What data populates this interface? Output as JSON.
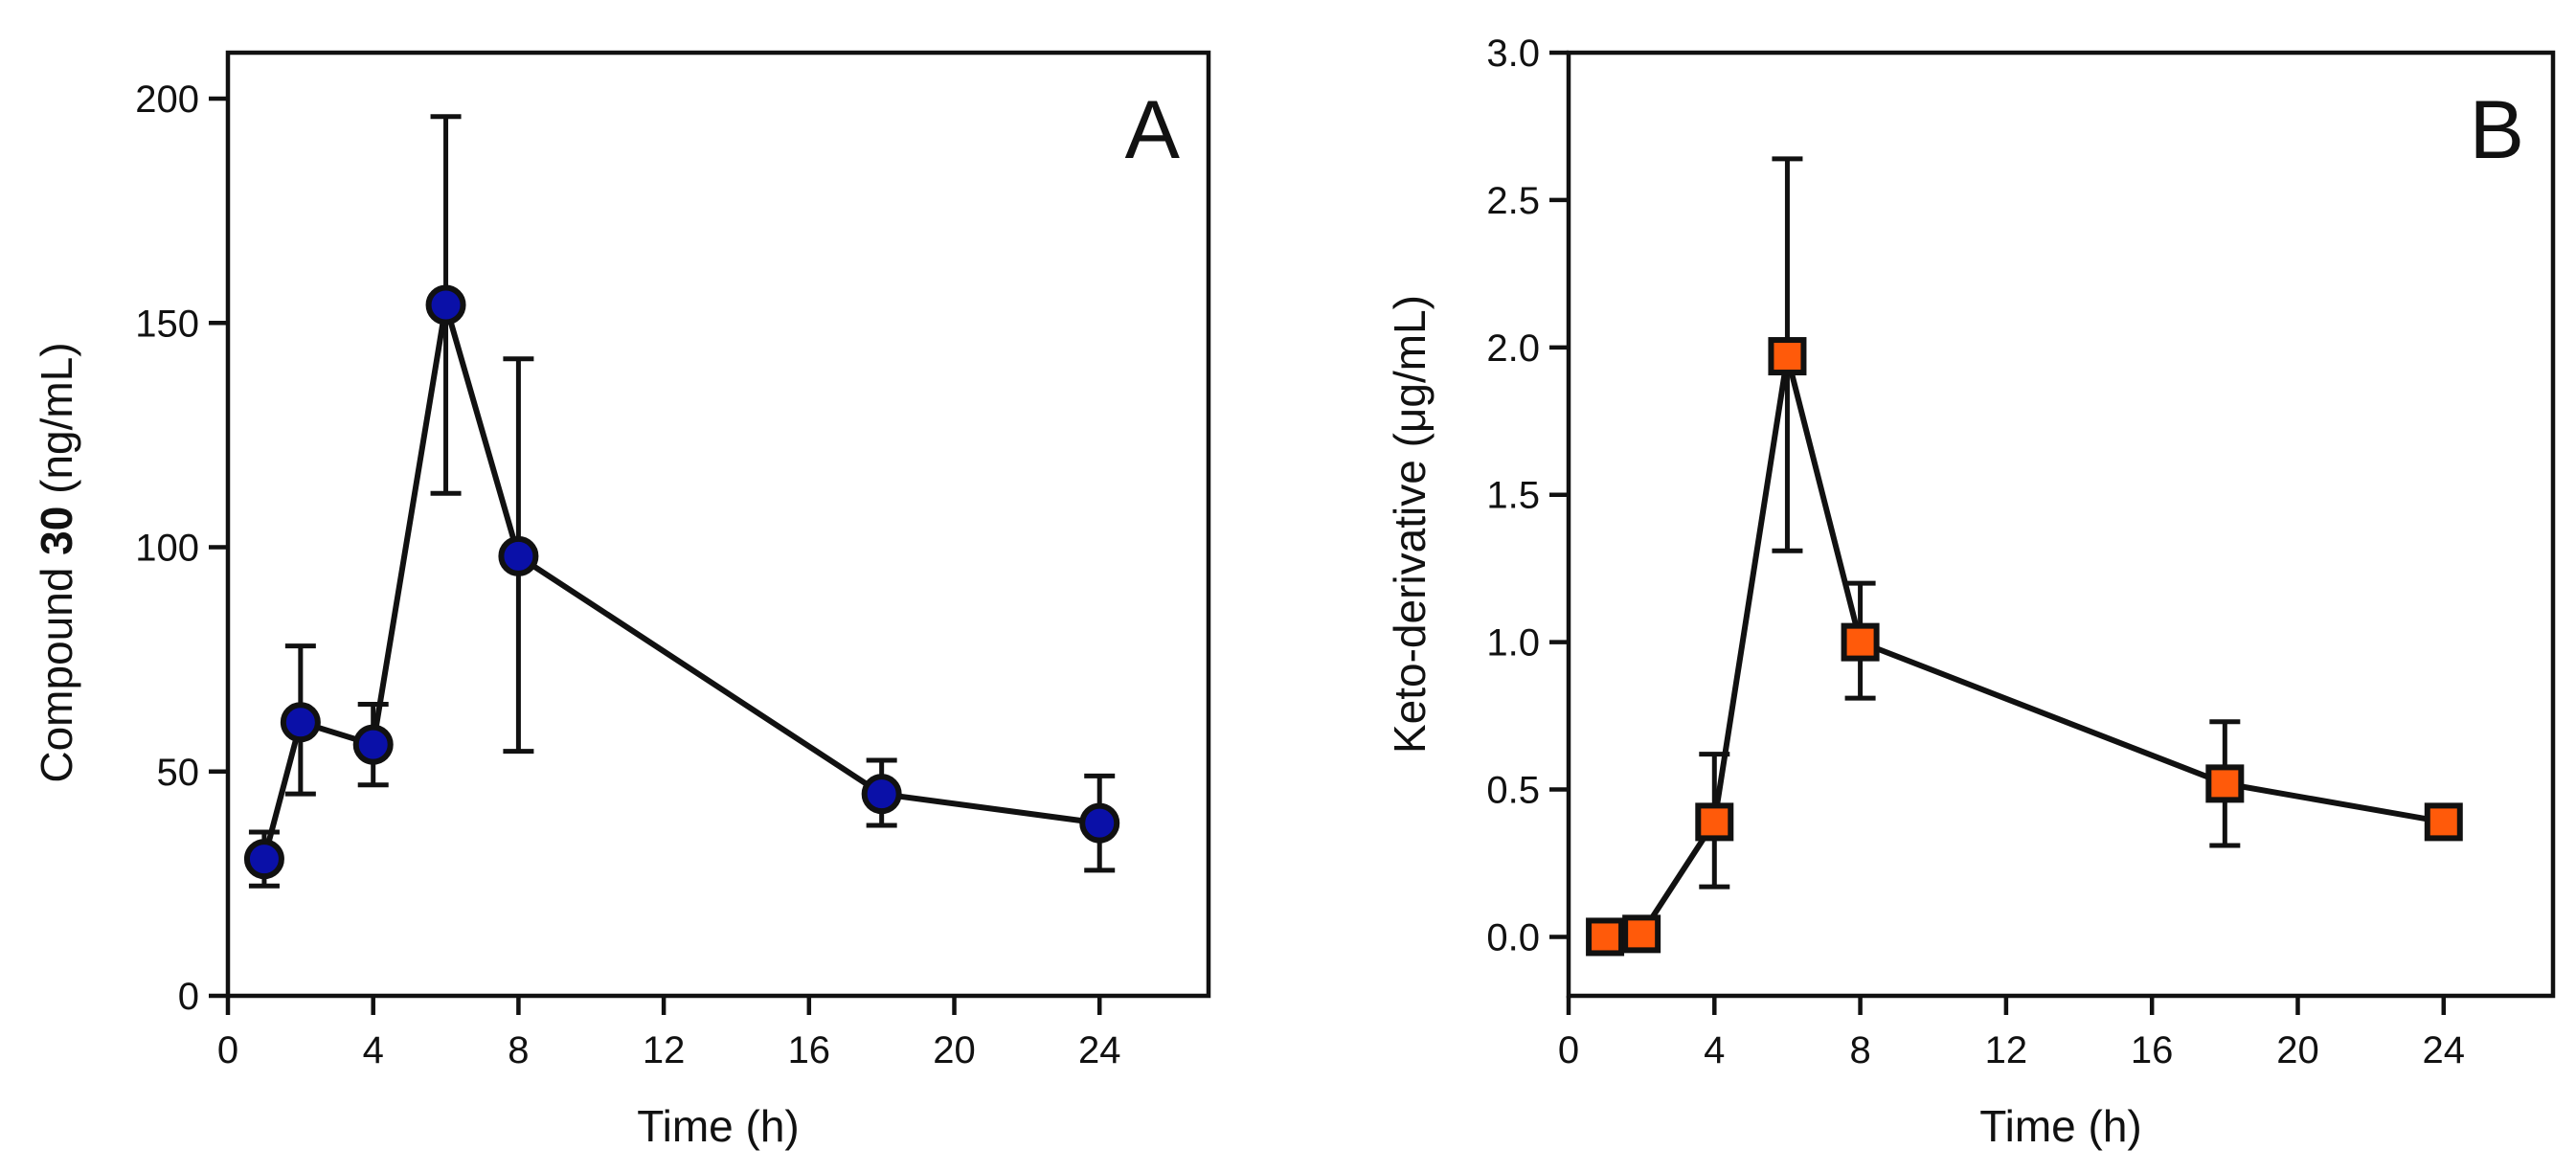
{
  "chart_data": [
    {
      "type": "line",
      "panel_label": "A",
      "xlabel": "Time (h)",
      "ylabel_parts": [
        "Compound ",
        "30",
        " (ng/mL)"
      ],
      "xlim": [
        0,
        27
      ],
      "ylim": [
        0,
        210
      ],
      "xticks": [
        0,
        4,
        8,
        12,
        16,
        20,
        24
      ],
      "xtick_labels": [
        "0",
        "4",
        "8",
        "12",
        "16",
        "20",
        "24"
      ],
      "yticks": [
        0,
        50,
        100,
        150,
        200
      ],
      "ytick_labels": [
        "0",
        "50",
        "100",
        "150",
        "200"
      ],
      "marker": "circle",
      "marker_color": "#0a10a8",
      "series": [
        {
          "name": "Compound 30",
          "x": [
            1,
            2,
            4,
            6,
            8,
            18,
            24
          ],
          "y": [
            30.5,
            61,
            56,
            154,
            98,
            45,
            38.5
          ],
          "err_upper": [
            36.5,
            78,
            65,
            196,
            142,
            52.5,
            49
          ],
          "err_lower": [
            24.5,
            45,
            47,
            112,
            54.5,
            38,
            28
          ]
        }
      ]
    },
    {
      "type": "line",
      "panel_label": "B",
      "xlabel": "Time (h)",
      "ylabel_parts": [
        "Keto-derivative (",
        "μ",
        "g/mL)"
      ],
      "xlim": [
        0,
        27
      ],
      "ylim": [
        -0.2,
        3.0
      ],
      "xticks": [
        0,
        4,
        8,
        12,
        16,
        20,
        24
      ],
      "xtick_labels": [
        "0",
        "4",
        "8",
        "12",
        "16",
        "20",
        "24"
      ],
      "yticks": [
        0.0,
        0.5,
        1.0,
        1.5,
        2.0,
        2.5,
        3.0
      ],
      "ytick_labels": [
        "0.0",
        "0.5",
        "1.0",
        "1.5",
        "2.0",
        "2.5",
        "3.0"
      ],
      "marker": "square",
      "marker_color": "#ff5a0a",
      "series": [
        {
          "name": "Keto-derivative",
          "x": [
            1,
            2,
            4,
            6,
            8,
            18,
            24
          ],
          "y": [
            0.0,
            0.01,
            0.39,
            1.97,
            1.0,
            0.52,
            0.39
          ],
          "err_upper": [
            null,
            null,
            0.62,
            2.64,
            1.2,
            0.73,
            0.44
          ],
          "err_lower": [
            null,
            null,
            0.17,
            1.31,
            0.81,
            0.31,
            0.34
          ]
        }
      ]
    }
  ]
}
